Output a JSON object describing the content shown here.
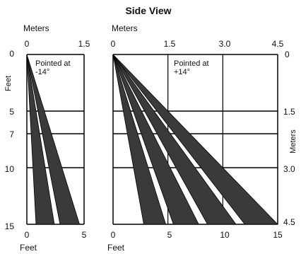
{
  "title": "Side View",
  "left_panel": {
    "top_axis_label": "Meters",
    "top_ticks": [
      "0",
      "1.5"
    ],
    "bottom_axis_label": "Feet",
    "bottom_ticks": [
      "0",
      "5"
    ],
    "y_axis_label": "Feet",
    "y_ticks": [
      "0",
      "5",
      "7",
      "10",
      "15"
    ],
    "note_line1": "Pointed at",
    "note_line2": "-14°",
    "beams": [
      {
        "start_ft": 0.8,
        "end_ft": 2.4
      },
      {
        "start_ft": 2.9,
        "end_ft": 4.6
      }
    ]
  },
  "right_panel": {
    "top_axis_label": "Meters",
    "top_ticks": [
      "0",
      "1.5",
      "3.0",
      "4.5"
    ],
    "bottom_axis_label": "Feet",
    "bottom_ticks": [
      "0",
      "5",
      "10",
      "15"
    ],
    "y_axis_label": "Meters",
    "y_ticks": [
      "0",
      "1.5",
      "3.0",
      "4.5"
    ],
    "note_line1": "Pointed at",
    "note_line2": "+14°",
    "beams": [
      {
        "start_ft": 2.8,
        "end_ft": 4.8
      },
      {
        "start_ft": 5.5,
        "end_ft": 7.8
      },
      {
        "start_ft": 8.6,
        "end_ft": 11.2
      },
      {
        "start_ft": 12.0,
        "end_ft": 15.0
      }
    ]
  },
  "gridlines_ft": [
    0,
    5,
    7,
    10,
    15
  ],
  "colors": {
    "beam": "#3a3a3a",
    "line": "#000000"
  }
}
